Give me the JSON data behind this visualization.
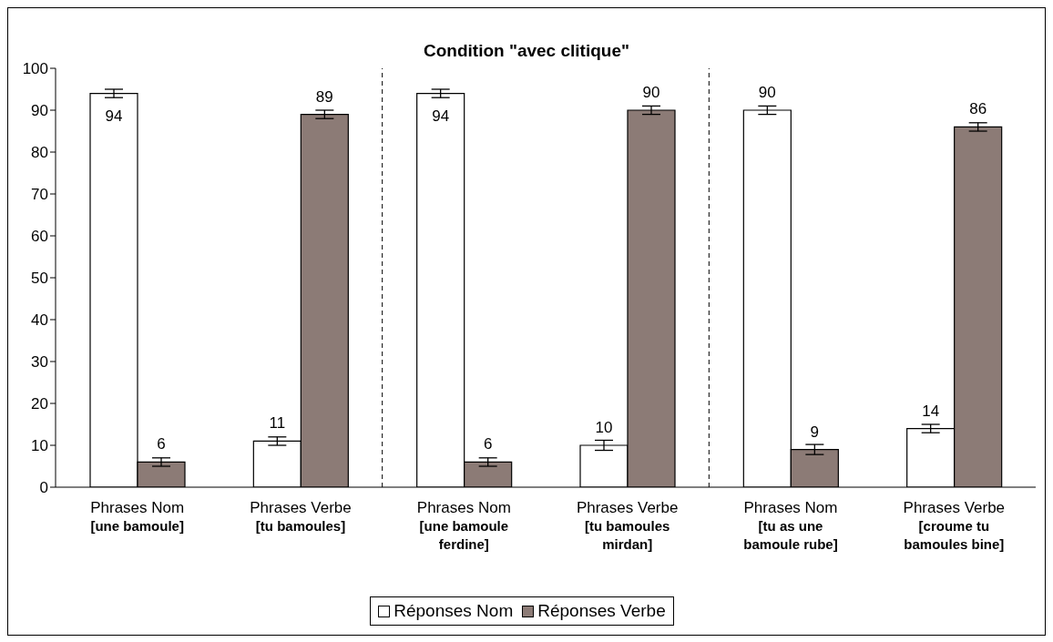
{
  "chart_data": {
    "type": "bar",
    "title": "Condition \"avec clitique\"",
    "categories": [
      "Phrases Nom\n[une bamoule]",
      "Phrases Verbe\n[tu bamoules]",
      "Phrases Nom\n[une bamoule\nferdine]",
      "Phrases Verbe\n[tu bamoules\nmirdan]",
      "Phrases Nom\n[tu as une\nbamoule rube]",
      "Phrases Verbe\n[croume tu\nbamoules bine]"
    ],
    "series": [
      {
        "name": "Réponses Nom",
        "color": "#ffffff",
        "values": [
          94,
          11,
          94,
          10,
          90,
          14
        ],
        "errors": [
          1,
          1,
          1,
          1.2,
          1,
          1
        ]
      },
      {
        "name": "Réponses Verbe",
        "color": "#8c7b76",
        "values": [
          6,
          89,
          6,
          90,
          9,
          86
        ],
        "errors": [
          1,
          1,
          1,
          1,
          1.2,
          1
        ]
      }
    ],
    "ylim": [
      0,
      100
    ],
    "yticks": [
      0,
      10,
      20,
      30,
      40,
      50,
      60,
      70,
      80,
      90,
      100
    ],
    "data_labels": true,
    "legend": "bottom",
    "grid": false
  }
}
